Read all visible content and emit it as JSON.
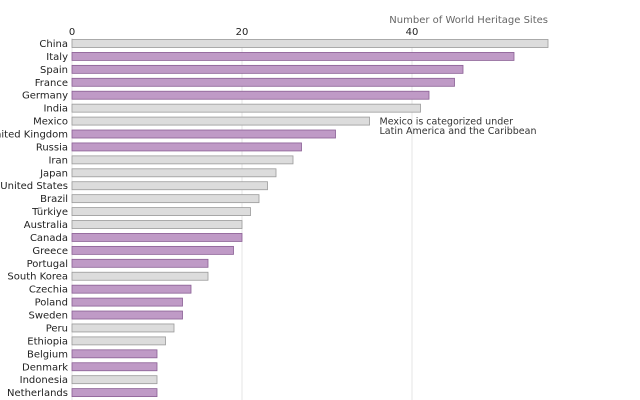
{
  "chart_data": {
    "type": "bar",
    "orientation": "horizontal",
    "xlabel": "Number of World Heritage Sites",
    "xlim": [
      0,
      56
    ],
    "xticks": [
      0,
      20,
      40
    ],
    "grid": true,
    "categories": [
      "China",
      "Italy",
      "Spain",
      "France",
      "Germany",
      "India",
      "Mexico",
      "United Kingdom",
      "Russia",
      "Iran",
      "Japan",
      "United States",
      "Brazil",
      "Türkiye",
      "Australia",
      "Canada",
      "Greece",
      "Portugal",
      "South Korea",
      "Czechia",
      "Poland",
      "Sweden",
      "Peru",
      "Ethiopia",
      "Belgium",
      "Denmark",
      "Indonesia",
      "Netherlands"
    ],
    "values": [
      56,
      52,
      46,
      45,
      42,
      41,
      35,
      31,
      27,
      26,
      24,
      23,
      22,
      21,
      20,
      20,
      19,
      16,
      16,
      14,
      13,
      13,
      12,
      11,
      10,
      10,
      10,
      10
    ],
    "groups": [
      "other",
      "europe",
      "europe",
      "europe",
      "europe",
      "other",
      "other",
      "europe",
      "europe",
      "other",
      "other",
      "other",
      "other",
      "other",
      "other",
      "europe",
      "europe",
      "europe",
      "other",
      "europe",
      "europe",
      "europe",
      "other",
      "other",
      "europe",
      "europe",
      "other",
      "europe"
    ],
    "colors": {
      "europe": "#bf9ac6",
      "other": "#dcdcdc"
    },
    "annotation": {
      "category": "Mexico",
      "lines": [
        "Mexico is categorized under",
        "Latin America and the Caribbean"
      ]
    }
  }
}
